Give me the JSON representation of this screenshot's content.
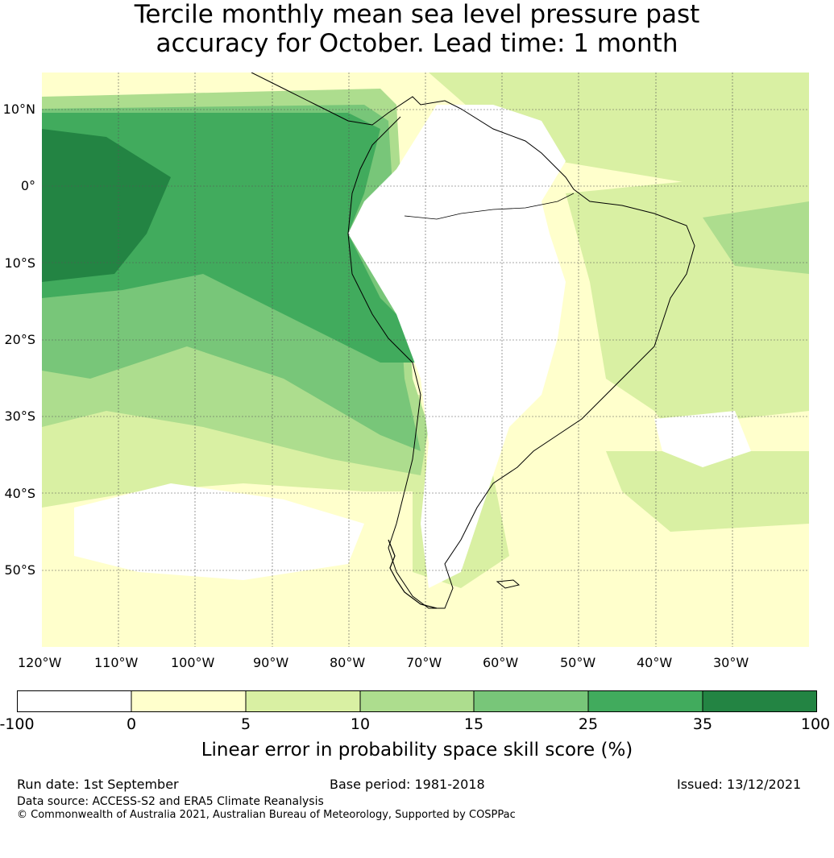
{
  "title": {
    "line1": "Tercile monthly mean sea level pressure past",
    "line2": "accuracy for October. Lead time: 1 month"
  },
  "axes": {
    "lat_labels": [
      "10°N",
      "0°",
      "10°S",
      "20°S",
      "30°S",
      "40°S",
      "50°S"
    ],
    "lon_labels": [
      "120°W",
      "110°W",
      "100°W",
      "90°W",
      "80°W",
      "70°W",
      "60°W",
      "50°W",
      "40°W",
      "30°W"
    ]
  },
  "colorbar": {
    "ticks": [
      "-100",
      "0",
      "5",
      "10",
      "15",
      "25",
      "35",
      "100"
    ],
    "colors": [
      "#ffffff",
      "#ffffcc",
      "#d9f0a3",
      "#addd8e",
      "#78c679",
      "#41ab5d",
      "#238443"
    ],
    "label": "Linear error in probability space skill score (%)"
  },
  "footer": {
    "run_date": "Run date: 1st September",
    "base_period": "Base period: 1981-2018",
    "issued": "Issued: 13/12/2021",
    "data_source": "Data source: ACCESS-S2 and ERA5 Climate Reanalysis",
    "copyright": "© Commonwealth of Australia 2021, Australian Bureau of Meteorology, Supported by COSPPac"
  },
  "map_colors": {
    "ocean_low": "#ffffcc",
    "land_white": "#ffffff",
    "c5": "#d9f0a3",
    "c10": "#addd8e",
    "c15": "#78c679",
    "c25": "#41ab5d",
    "c35": "#238443",
    "coast": "#000000",
    "grid": "#555555"
  }
}
